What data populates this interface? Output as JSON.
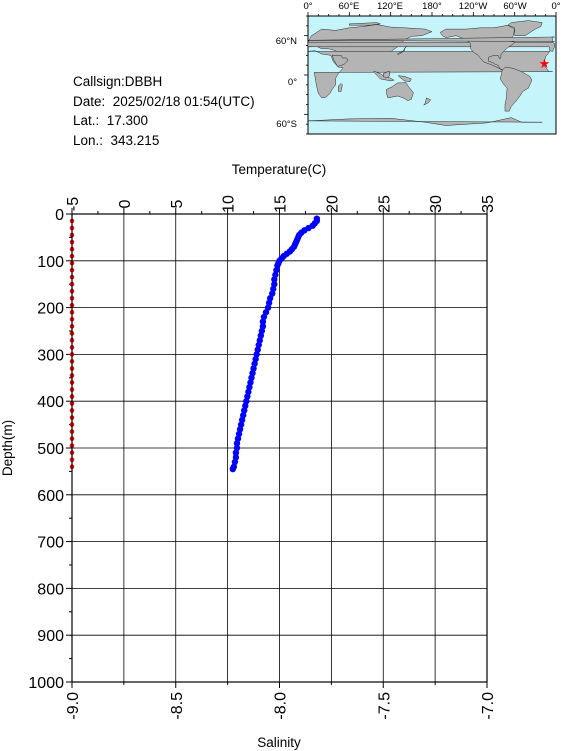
{
  "info": {
    "callsign": "Callsign:DBBH",
    "date": "Date:  2025/02/18 01:54(UTC)",
    "lat": "Lat.:  17.300",
    "lon": "Lon.:  343.215"
  },
  "map": {
    "top_tick_labels": [
      "0°",
      "60°E",
      "120°E",
      "180°",
      "120°W",
      "60°W",
      "0°"
    ],
    "left_tick_labels": [
      "60°N",
      "0°",
      "60°S"
    ],
    "ocean_color": "#c6f4fb",
    "land_color": "#b4b4b4",
    "marker_color": "#ff0000",
    "marker": {
      "lon": 343.215,
      "lat": 17.3
    }
  },
  "chart_data": {
    "type": "scatter",
    "ylabel": "Depth(m)",
    "y_ticks": [
      "0",
      "100",
      "200",
      "300",
      "400",
      "500",
      "600",
      "700",
      "800",
      "900",
      "1000"
    ],
    "ylim": [
      1000,
      0
    ],
    "top_axis": {
      "label": "Temperature(C)",
      "ticks": [
        "-5",
        "0",
        "5",
        "10",
        "15",
        "20",
        "25",
        "30",
        "35"
      ],
      "lim": [
        -5,
        35
      ]
    },
    "bottom_axis": {
      "label": "Salinity",
      "ticks": [
        "-9.0",
        "-8.5",
        "-8.0",
        "-7.5",
        "-7.0"
      ],
      "lim": [
        -9.0,
        -7.0
      ]
    },
    "grid": true,
    "series": [
      {
        "color": "#0000ff",
        "axis": "temperature",
        "points": [
          [
            18.6,
            10
          ],
          [
            18.6,
            15
          ],
          [
            18.4,
            20
          ],
          [
            18.2,
            25
          ],
          [
            17.8,
            30
          ],
          [
            17.4,
            35
          ],
          [
            17.1,
            40
          ],
          [
            16.9,
            45
          ],
          [
            16.8,
            50
          ],
          [
            16.7,
            55
          ],
          [
            16.6,
            60
          ],
          [
            16.5,
            65
          ],
          [
            16.4,
            70
          ],
          [
            16.2,
            75
          ],
          [
            16.0,
            80
          ],
          [
            15.7,
            85
          ],
          [
            15.4,
            90
          ],
          [
            15.2,
            95
          ],
          [
            15.0,
            100
          ],
          [
            14.9,
            105
          ],
          [
            14.8,
            110
          ],
          [
            14.7,
            120
          ],
          [
            14.6,
            130
          ],
          [
            14.5,
            140
          ],
          [
            14.5,
            150
          ],
          [
            14.4,
            160
          ],
          [
            14.3,
            170
          ],
          [
            14.1,
            180
          ],
          [
            14.0,
            190
          ],
          [
            13.9,
            200
          ],
          [
            13.7,
            210
          ],
          [
            13.5,
            220
          ],
          [
            13.4,
            230
          ],
          [
            13.4,
            240
          ],
          [
            13.3,
            250
          ],
          [
            13.2,
            260
          ],
          [
            13.1,
            270
          ],
          [
            13.0,
            280
          ],
          [
            12.9,
            290
          ],
          [
            12.8,
            300
          ],
          [
            12.7,
            310
          ],
          [
            12.6,
            320
          ],
          [
            12.5,
            330
          ],
          [
            12.4,
            340
          ],
          [
            12.3,
            350
          ],
          [
            12.2,
            360
          ],
          [
            12.1,
            370
          ],
          [
            12.0,
            380
          ],
          [
            11.9,
            390
          ],
          [
            11.8,
            400
          ],
          [
            11.7,
            410
          ],
          [
            11.6,
            420
          ],
          [
            11.5,
            430
          ],
          [
            11.4,
            440
          ],
          [
            11.3,
            450
          ],
          [
            11.2,
            460
          ],
          [
            11.1,
            470
          ],
          [
            11.0,
            480
          ],
          [
            10.9,
            490
          ],
          [
            10.9,
            500
          ],
          [
            10.8,
            510
          ],
          [
            10.8,
            520
          ],
          [
            10.7,
            530
          ],
          [
            10.6,
            540
          ],
          [
            10.5,
            545
          ]
        ]
      },
      {
        "color": "#ff0000",
        "axis": "salinity",
        "points": [
          [
            -9.0,
            15
          ],
          [
            -9.0,
            30
          ],
          [
            -9.0,
            45
          ],
          [
            -9.0,
            60
          ],
          [
            -9.0,
            75
          ],
          [
            -9.0,
            90
          ],
          [
            -9.0,
            105
          ],
          [
            -9.0,
            120
          ],
          [
            -9.0,
            135
          ],
          [
            -9.0,
            150
          ],
          [
            -9.0,
            165
          ],
          [
            -9.0,
            180
          ],
          [
            -9.0,
            195
          ],
          [
            -9.0,
            210
          ],
          [
            -9.0,
            225
          ],
          [
            -9.0,
            240
          ],
          [
            -9.0,
            255
          ],
          [
            -9.0,
            270
          ],
          [
            -9.0,
            285
          ],
          [
            -9.0,
            300
          ],
          [
            -9.0,
            315
          ],
          [
            -9.0,
            330
          ],
          [
            -9.0,
            345
          ],
          [
            -9.0,
            360
          ],
          [
            -9.0,
            375
          ],
          [
            -9.0,
            390
          ],
          [
            -9.0,
            405
          ],
          [
            -9.0,
            420
          ],
          [
            -9.0,
            435
          ],
          [
            -9.0,
            450
          ],
          [
            -9.0,
            465
          ],
          [
            -9.0,
            480
          ],
          [
            -9.0,
            495
          ],
          [
            -9.0,
            510
          ],
          [
            -9.0,
            525
          ],
          [
            -9.0,
            540
          ]
        ]
      }
    ]
  }
}
